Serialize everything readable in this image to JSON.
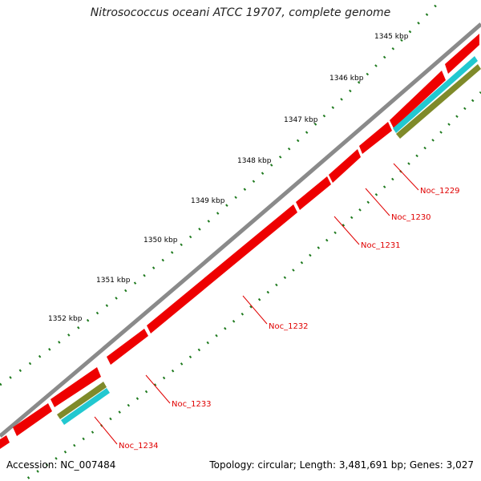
{
  "title": "Nitrosococcus oceani ATCC 19707, complete genome",
  "footer": {
    "accession": "Accession: NC_007484",
    "summary": "Topology: circular; Length: 3,481,691 bp; Genes: 3,027"
  },
  "scale_ticks": [
    "1345 kbp",
    "1346 kbp",
    "1347 kbp",
    "1348 kbp",
    "1349 kbp",
    "1350 kbp",
    "1351 kbp",
    "1352 kbp"
  ],
  "genes": [
    "Noc_1229",
    "Noc_1230",
    "Noc_1231",
    "Noc_1232",
    "Noc_1233",
    "Noc_1234"
  ],
  "colors": {
    "backbone": "#8a8a8a",
    "gene_forward": "#ee0000",
    "feature_cyan": "#22c8d0",
    "feature_olive": "#7f8a2a",
    "gc_dots": "#1e7a1e",
    "label": "#e00000"
  }
}
